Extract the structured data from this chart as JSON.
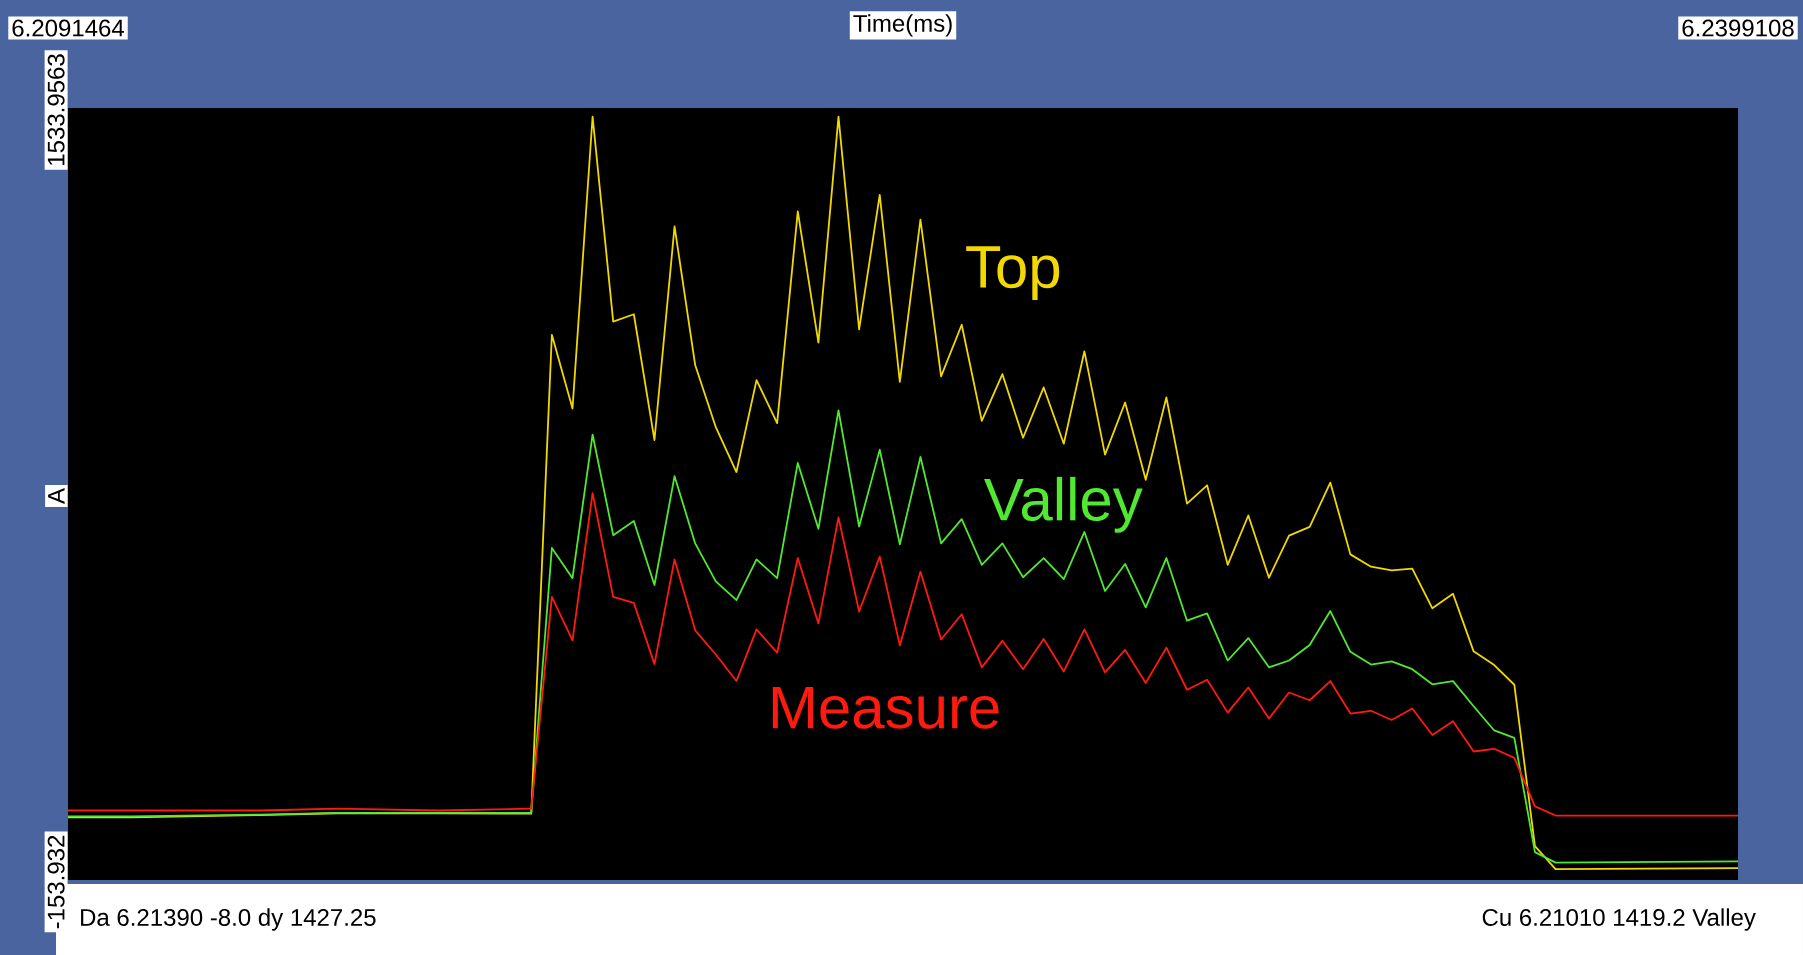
{
  "chart_data": {
    "type": "line",
    "xlabel": "Time(ms)",
    "ylabel": "A",
    "annotations": [
      "Da 6.21390 -8.0 dy 1427.25",
      "Cu 6.21010 1419.2 Valley"
    ],
    "xlim": [
      6.2091464,
      6.2399108
    ],
    "xticks": [
      6.2091464,
      6.2399108
    ],
    "ylim": [
      -153.932,
      1533.9563
    ],
    "yticks": [
      -153.932,
      1533.9563
    ],
    "tick_labels": "xy",
    "legend": false,
    "x": [
      6.2091464,
      6.21032,
      6.21269,
      6.2141,
      6.21596,
      6.21768,
      6.21806,
      6.21844,
      6.21881,
      6.21919,
      6.21957,
      6.21995,
      6.22032,
      6.2207,
      6.22108,
      6.22146,
      6.22183,
      6.22221,
      6.22259,
      6.22297,
      6.22334,
      6.22372,
      6.2241,
      6.22447,
      6.22485,
      6.22523,
      6.22561,
      6.22598,
      6.22636,
      6.22674,
      6.22712,
      6.22749,
      6.22787,
      6.22825,
      6.22862,
      6.229,
      6.22938,
      6.22976,
      6.23013,
      6.23051,
      6.23089,
      6.23127,
      6.23164,
      6.23202,
      6.2324,
      6.23277,
      6.23315,
      6.23353,
      6.23391,
      6.23428,
      6.23466,
      6.23504,
      6.23542,
      6.23579,
      6.23617,
      6.23655,
      6.2399108
    ],
    "series": [
      {
        "name": "Top",
        "color": "#f0d800",
        "values": [
          -17,
          -17,
          -12,
          -8,
          -8,
          -9,
          1038,
          877,
          1515,
          1067,
          1083,
          808,
          1275,
          972,
          836,
          738,
          939,
          845,
          1308,
          1021,
          1515,
          1050,
          1344,
          935,
          1290,
          947,
          1060,
          850,
          952,
          813,
          923,
          800,
          1002,
          776,
          890,
          721,
          901,
          669,
          709,
          535,
          643,
          507,
          599,
          618,
          715,
          558,
          531,
          523,
          527,
          440,
          472,
          346,
          316,
          273,
          -80,
          -130,
          -128
        ]
      },
      {
        "name": "Valley",
        "color": "#50e830",
        "values": [
          -15,
          -15,
          -11,
          -7,
          -7,
          -7,
          572,
          506,
          820,
          600,
          631,
          491,
          729,
          582,
          499,
          458,
          547,
          506,
          758,
          614,
          873,
          619,
          787,
          580,
          771,
          582,
          635,
          535,
          582,
          508,
          550,
          504,
          607,
          478,
          537,
          442,
          550,
          413,
          429,
          326,
          375,
          311,
          326,
          360,
          434,
          345,
          317,
          324,
          307,
          274,
          281,
          226,
          173,
          157,
          -93,
          -116,
          -113
        ]
      },
      {
        "name": "Measure",
        "color": "#ff1a10",
        "values": [
          -2,
          -2,
          -2,
          2,
          -2,
          2,
          465,
          370,
          692,
          465,
          452,
          318,
          547,
          392,
          339,
          281,
          394,
          343,
          550,
          407,
          639,
          433,
          553,
          359,
          520,
          372,
          427,
          311,
          369,
          307,
          373,
          302,
          394,
          300,
          349,
          277,
          354,
          262,
          284,
          212,
          267,
          199,
          256,
          239,
          281,
          210,
          216,
          196,
          221,
          163,
          193,
          127,
          133,
          113,
          7,
          -13,
          -13
        ]
      }
    ]
  }
}
